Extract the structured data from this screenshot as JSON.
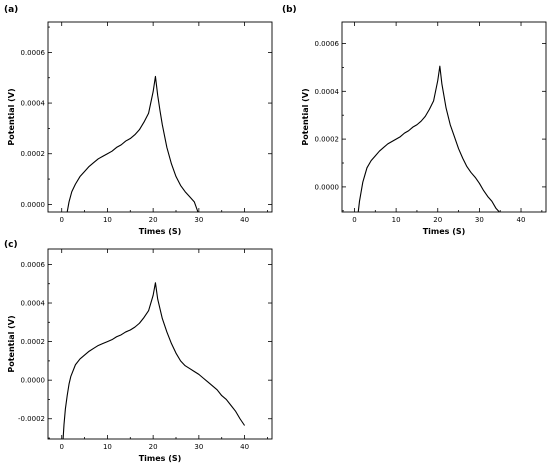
{
  "chart_data": [
    {
      "type": "line",
      "panel_label": "(a)",
      "xlabel": "Times (S)",
      "ylabel": "Potential (V)",
      "xlim": [
        -3,
        46
      ],
      "ylim": [
        -3e-05,
        0.00072
      ],
      "xticks": [
        0,
        10,
        20,
        30,
        40
      ],
      "xtick_labels": [
        "0",
        "10",
        "20",
        "30",
        "40"
      ],
      "yticks": [
        0.0,
        0.0002,
        0.0004,
        0.0006
      ],
      "ytick_labels": [
        "0.0000",
        "0.0002",
        "0.0004",
        "0.0006"
      ],
      "grid": false,
      "series": [
        {
          "color": "#000000",
          "x": [
            1.2,
            1.6,
            2.2,
            3,
            4,
            5,
            6,
            7,
            8,
            9,
            10,
            11,
            12,
            13,
            14,
            15,
            16,
            17,
            18,
            19,
            20,
            20.5,
            21,
            21.5,
            22,
            22.5,
            23,
            24,
            25,
            26,
            27,
            28,
            29,
            29.8
          ],
          "y": [
            -3e-05,
            1e-05,
            5e-05,
            8e-05,
            0.00011,
            0.00013,
            0.00015,
            0.000165,
            0.00018,
            0.00019,
            0.0002,
            0.00021,
            0.000225,
            0.000235,
            0.00025,
            0.00026,
            0.000275,
            0.000295,
            0.000325,
            0.00036,
            0.000445,
            0.000505,
            0.00043,
            0.00037,
            0.000315,
            0.00027,
            0.000225,
            0.00016,
            0.00011,
            7.5e-05,
            5e-05,
            3e-05,
            1e-05,
            -3e-05
          ]
        }
      ]
    },
    {
      "type": "line",
      "panel_label": "(b)",
      "xlabel": "Times (S)",
      "ylabel": "Potential (V)",
      "xlim": [
        -3,
        46
      ],
      "ylim": [
        -0.000105,
        0.00069
      ],
      "xticks": [
        0,
        10,
        20,
        30,
        40
      ],
      "xtick_labels": [
        "0",
        "10",
        "20",
        "30",
        "40"
      ],
      "yticks": [
        0.0,
        0.0002,
        0.0004,
        0.0006
      ],
      "ytick_labels": [
        "0.0000",
        "0.0002",
        "0.0004",
        "0.0006"
      ],
      "grid": false,
      "series": [
        {
          "color": "#000000",
          "x": [
            0.9,
            1.2,
            1.6,
            2,
            2.5,
            3,
            4,
            5,
            6,
            7,
            8,
            9,
            10,
            11,
            12,
            13,
            14,
            15,
            16,
            17,
            18,
            19,
            20,
            20.5,
            21,
            22,
            23,
            24,
            25,
            26,
            27,
            28,
            29,
            30,
            31,
            32,
            33,
            34,
            34.8
          ],
          "y": [
            -0.000105,
            -6e-05,
            -2e-05,
            2e-05,
            5e-05,
            8e-05,
            0.00011,
            0.00013,
            0.00015,
            0.000165,
            0.00018,
            0.00019,
            0.0002,
            0.00021,
            0.000225,
            0.000235,
            0.00025,
            0.00026,
            0.000275,
            0.000295,
            0.000325,
            0.00036,
            0.000445,
            0.000505,
            0.00043,
            0.00033,
            0.00026,
            0.00021,
            0.00016,
            0.00012,
            8.5e-05,
            6e-05,
            4e-05,
            1.5e-05,
            -1.5e-05,
            -4e-05,
            -6e-05,
            -9e-05,
            -0.000105
          ]
        }
      ]
    },
    {
      "type": "line",
      "panel_label": "(c)",
      "xlabel": "Times (S)",
      "ylabel": "Potential (V)",
      "xlim": [
        -3,
        46
      ],
      "ylim": [
        -0.000305,
        0.00068
      ],
      "xticks": [
        0,
        10,
        20,
        30,
        40
      ],
      "xtick_labels": [
        "0",
        "10",
        "20",
        "30",
        "40"
      ],
      "yticks": [
        -0.0002,
        0.0,
        0.0002,
        0.0004,
        0.0006
      ],
      "ytick_labels": [
        "-0.0002",
        "0.0000",
        "0.0002",
        "0.0004",
        "0.0006"
      ],
      "grid": false,
      "series": [
        {
          "color": "#000000",
          "x": [
            0.3,
            0.5,
            0.8,
            1.2,
            1.6,
            2,
            2.5,
            3,
            4,
            5,
            6,
            7,
            8,
            9,
            10,
            11,
            12,
            13,
            14,
            15,
            16,
            17,
            18,
            19,
            20,
            20.5,
            21,
            22,
            23,
            24,
            25,
            26,
            27,
            28,
            29,
            30,
            31,
            32,
            33,
            34,
            35,
            36,
            37,
            38,
            39,
            40
          ],
          "y": [
            -0.000305,
            -0.00023,
            -0.00015,
            -8e-05,
            -2e-05,
            2e-05,
            5e-05,
            8e-05,
            0.00011,
            0.00013,
            0.00015,
            0.000165,
            0.00018,
            0.00019,
            0.0002,
            0.00021,
            0.000225,
            0.000235,
            0.00025,
            0.00026,
            0.000275,
            0.000295,
            0.000325,
            0.00036,
            0.00044,
            0.000505,
            0.00042,
            0.00032,
            0.00025,
            0.00019,
            0.00014,
            0.0001,
            7.5e-05,
            6e-05,
            4.5e-05,
            3e-05,
            1e-05,
            -1e-05,
            -3e-05,
            -5e-05,
            -8e-05,
            -0.0001,
            -0.00013,
            -0.00016,
            -0.0002,
            -0.000235
          ]
        }
      ]
    }
  ]
}
